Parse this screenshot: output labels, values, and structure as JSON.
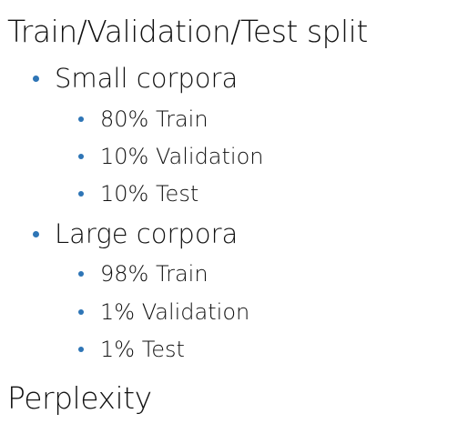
{
  "sections": [
    {
      "title": "Train/Validation/Test split",
      "items": [
        {
          "label": "Small corpora",
          "subitems": [
            "80% Train",
            "10% Validation",
            "10% Test"
          ]
        },
        {
          "label": "Large corpora",
          "subitems": [
            "98% Train",
            "1% Validation",
            "1% Test"
          ]
        }
      ]
    },
    {
      "title": "Perplexity",
      "items": []
    }
  ]
}
